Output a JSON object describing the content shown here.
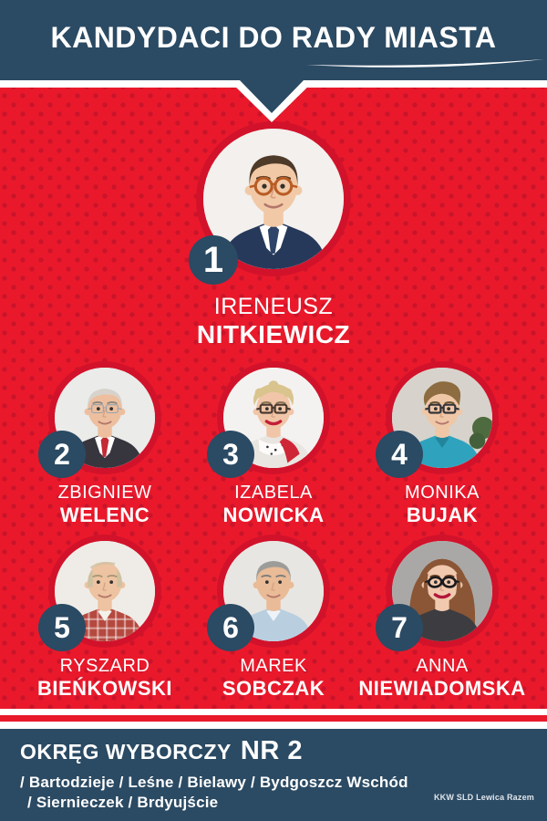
{
  "header": {
    "title": "KANDYDACI DO RADY MIASTA"
  },
  "palette": {
    "background_red": "#e9192b",
    "dot_red": "#c9142a",
    "ring_red": "#d2122b",
    "navy": "#2b4a63",
    "white": "#ffffff"
  },
  "candidates": [
    {
      "number": "1",
      "first_name": "IRENEUSZ",
      "last_name": "NITKIEWICZ",
      "avatar": {
        "bg": "#f3f0ed",
        "hair": "#4e3a28",
        "brow": "#4e3a28",
        "skin": "#f2c9a6",
        "hair_style": "side-part",
        "glasses": "#b85c24",
        "glasses_style": "round",
        "top": "#27395a",
        "shirt": "#ffffff",
        "tie": "#2e4468"
      }
    },
    {
      "number": "2",
      "first_name": "ZBIGNIEW",
      "last_name": "WELENC",
      "avatar": {
        "bg": "#ebebe9",
        "hair": "#d7d3cc",
        "brow": "#8c8880",
        "skin": "#edbf9f",
        "hair_style": "combed-back",
        "glasses": "#98a2ac",
        "glasses_style": "thin",
        "top": "#37363e",
        "shirt": "#ffffff",
        "tie": "#c32b35"
      }
    },
    {
      "number": "3",
      "first_name": "IZABELA",
      "last_name": "NOWICKA",
      "avatar": {
        "bg": "#f4f2f0",
        "hair": "#d9c48e",
        "brow": "#8a7355",
        "skin": "#f1c5a7",
        "hair_style": "tousled",
        "glasses": "#4a3a30",
        "glasses_style": "rect",
        "top": "#e9e6e2",
        "scarf": "#fdfbf9",
        "lipstick": "#c21f38"
      }
    },
    {
      "number": "4",
      "first_name": "MONIKA",
      "last_name": "BUJAK",
      "avatar": {
        "bg": "#d7d3cc",
        "plant": true,
        "hair": "#8c6c40",
        "brow": "#6b5330",
        "skin": "#efc7a7",
        "hair_style": "quiff",
        "glasses": "#34343a",
        "glasses_style": "rect",
        "top": "#2fa3bd",
        "collar": "#23859c"
      }
    },
    {
      "number": "5",
      "first_name": "RYSZARD",
      "last_name": "BIEŃKOWSKI",
      "avatar": {
        "bg": "#efece7",
        "hair": "#cfc2a2",
        "brow": "#a89878",
        "skin": "#eec3a1",
        "hair_style": "bald-sides",
        "top": "#b5493f",
        "plaid": true,
        "collar": "#f4f1ea"
      }
    },
    {
      "number": "6",
      "first_name": "MAREK",
      "last_name": "SOBCZAK",
      "avatar": {
        "bg": "#e8e6e3",
        "hair": "#9c9c99",
        "brow": "#7d7d7a",
        "skin": "#e9bb97",
        "hair_style": "full-gray",
        "top": "#b9cfe0",
        "collar": "#eef3f7"
      }
    },
    {
      "number": "7",
      "first_name": "ANNA",
      "last_name": "NIEWIADOMSKA",
      "avatar": {
        "bg": "#aaa8a6",
        "hair": "#8a5636",
        "brow": "#6e4226",
        "skin": "#f1c9ae",
        "hair_style": "long",
        "glasses": "#1a1a1e",
        "glasses_style": "cat-eye",
        "top": "#3d3d41",
        "lipstick": "#b2173c"
      }
    }
  ],
  "footer": {
    "district_label": "OKRĘG WYBORCZY",
    "district_number": "NR 2",
    "areas_line1": "/ Bartodzieje / Leśne / Bielawy / Bydgoszcz Wschód",
    "areas_line2": "/ Siernieczek / Brdyujście",
    "committee": "KKW SLD Lewica Razem"
  }
}
